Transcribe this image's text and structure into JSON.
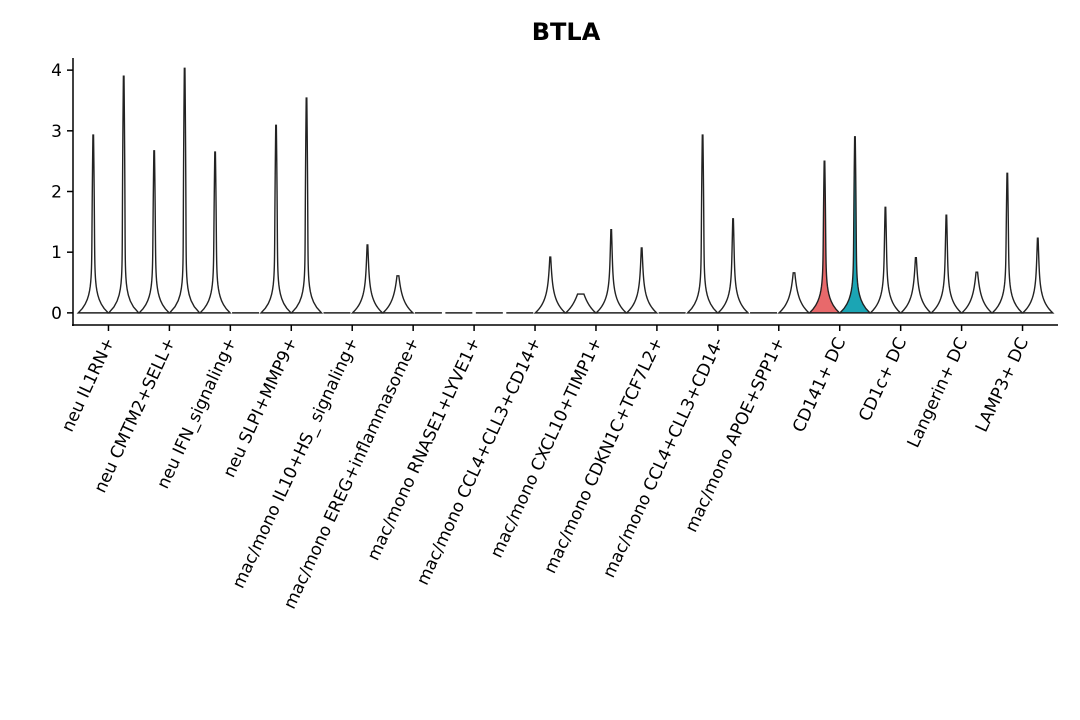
{
  "chart_data": {
    "type": "violin",
    "title": "BTLA",
    "categories": [
      "neu IL1RN+",
      "neu CMTM2+SELL+",
      "neu IFN_signaling+",
      "neu SLPI+MMP9+",
      "mac/mono IL10+HS_ signaling+",
      "mac/mono EREG+inflammasome+",
      "mac/mono RNASE1+LYVE1+",
      "mac/mono CCL4+CLL3+CD14+",
      "mac/mono CXCL10+TIMP1+",
      "mac/mono CDKN1C+TCF7L2+",
      "mac/mono CCL4+CLL3+CD14-",
      "mac/mono APOE+SPP1+",
      "CD141+ DC",
      "CD1c+ DC",
      "Langerin+ DC",
      "LAMP3+ DC"
    ],
    "series": [
      {
        "values": [
          2.93,
          2.67,
          2.65,
          3.09,
          0,
          0.61,
          0,
          0,
          0.31,
          1.07,
          2.93,
          0,
          2.5,
          1.74,
          1.61,
          2.3
        ],
        "colors": [
          "#ffffff",
          "#ffffff",
          "#ffffff",
          "#ffffff",
          "#ffffff",
          "#ffffff",
          "#ffffff",
          "#ffffff",
          "#ffffff",
          "#ffffff",
          "#ffffff",
          "#ffffff",
          "#e8696b",
          "#ffffff",
          "#ffffff",
          "#ffffff"
        ]
      },
      {
        "values": [
          3.9,
          4.03,
          0,
          3.54,
          1.12,
          0,
          0,
          0.92,
          1.37,
          0,
          1.55,
          0.66,
          2.9,
          0.91,
          0.67,
          1.23
        ],
        "colors": [
          "#ffffff",
          "#ffffff",
          "#ffffff",
          "#ffffff",
          "#ffffff",
          "#ffffff",
          "#ffffff",
          "#ffffff",
          "#ffffff",
          "#ffffff",
          "#ffffff",
          "#ffffff",
          "#1ba5b4",
          "#ffffff",
          "#ffffff",
          "#ffffff"
        ]
      }
    ],
    "ylim": [
      -0.2,
      4.2
    ],
    "yticks": [
      0,
      1,
      2,
      3,
      4
    ]
  }
}
